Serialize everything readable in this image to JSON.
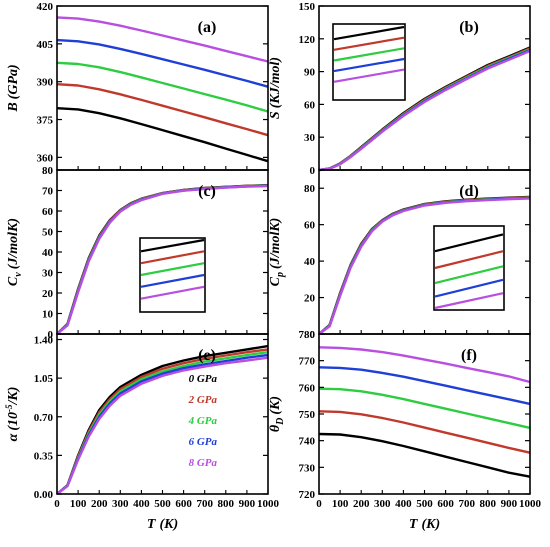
{
  "colors": {
    "0 GPa": "#000000",
    "2 GPa": "#c0392b",
    "4 GPa": "#2ecc40",
    "6 GPa": "#1f3fd6",
    "8 GPa": "#b84fe0"
  },
  "chart_data": [
    {
      "id": "a",
      "type": "line",
      "panel_label": "(a)",
      "ylabel_main": "B",
      "ylabel_unit": "(GPa)",
      "xlim": [
        0,
        1000
      ],
      "ylim": [
        355,
        420
      ],
      "yticks": [
        360,
        375,
        390,
        405,
        420
      ],
      "x": [
        0,
        100,
        200,
        300,
        400,
        500,
        600,
        700,
        800,
        900,
        1000
      ],
      "series": [
        {
          "name": "0 GPa",
          "values": [
            379.5,
            379.0,
            377.5,
            375.5,
            373.2,
            370.8,
            368.4,
            366.0,
            363.5,
            361.0,
            358.5
          ]
        },
        {
          "name": "2 GPa",
          "values": [
            389.0,
            388.5,
            387.0,
            385.0,
            382.8,
            380.5,
            378.2,
            375.9,
            373.5,
            371.2,
            368.8
          ]
        },
        {
          "name": "4 GPa",
          "values": [
            397.5,
            397.0,
            395.7,
            393.8,
            391.7,
            389.5,
            387.3,
            385.1,
            382.9,
            380.6,
            378.2
          ]
        },
        {
          "name": "6 GPa",
          "values": [
            406.5,
            406.0,
            404.8,
            403.0,
            401.0,
            398.9,
            396.8,
            394.7,
            392.5,
            390.3,
            388.0
          ]
        },
        {
          "name": "8 GPa",
          "values": [
            415.5,
            415.0,
            413.8,
            412.2,
            410.3,
            408.3,
            406.3,
            404.3,
            402.2,
            400.1,
            398.0
          ]
        }
      ]
    },
    {
      "id": "b",
      "type": "line",
      "panel_label": "(b)",
      "ylabel_main": "S",
      "ylabel_unit": "(KJ/mol)",
      "xlim": [
        0,
        1000
      ],
      "ylim": [
        0,
        150
      ],
      "yticks": [
        0,
        30,
        60,
        90,
        120,
        150
      ],
      "x": [
        0,
        50,
        100,
        150,
        200,
        300,
        400,
        500,
        600,
        700,
        800,
        900,
        1000
      ],
      "series": [
        {
          "name": "0 GPa",
          "values": [
            0,
            1.5,
            6,
            13,
            21,
            37,
            52,
            65,
            76,
            86,
            96,
            104,
            112
          ]
        },
        {
          "name": "2 GPa",
          "values": [
            0,
            1.4,
            5.8,
            12.7,
            20.6,
            36.5,
            51.3,
            64.3,
            75.3,
            85.3,
            95.2,
            103.2,
            111.2
          ]
        },
        {
          "name": "4 GPa",
          "values": [
            0,
            1.3,
            5.6,
            12.4,
            20.2,
            36.0,
            50.7,
            63.6,
            74.6,
            84.6,
            94.4,
            102.4,
            110.4
          ]
        },
        {
          "name": "6 GPa",
          "values": [
            0,
            1.2,
            5.4,
            12.1,
            19.8,
            35.5,
            50.1,
            62.9,
            73.9,
            83.9,
            93.6,
            101.6,
            109.6
          ]
        },
        {
          "name": "8 GPa",
          "values": [
            0,
            1.1,
            5.2,
            11.8,
            19.4,
            35.0,
            49.5,
            62.2,
            73.2,
            83.2,
            92.8,
            100.8,
            108.8
          ]
        }
      ]
    },
    {
      "id": "c",
      "type": "line",
      "panel_label": "(c)",
      "ylabel_main": "C",
      "ylabel_sub": "v",
      "ylabel_unit": "(J/molK)",
      "xlim": [
        0,
        1000
      ],
      "ylim": [
        0,
        80
      ],
      "yticks": [
        0,
        10,
        20,
        30,
        40,
        50,
        60,
        70,
        80
      ],
      "x": [
        0,
        50,
        100,
        150,
        200,
        250,
        300,
        350,
        400,
        500,
        600,
        700,
        800,
        900,
        1000
      ],
      "series": [
        {
          "name": "0 GPa",
          "values": [
            0,
            5,
            22,
            37,
            48,
            55.5,
            60.5,
            63.8,
            66,
            68.8,
            70.3,
            71.2,
            71.8,
            72.3,
            72.6
          ]
        },
        {
          "name": "2 GPa",
          "values": [
            0,
            4.8,
            21.6,
            36.6,
            47.6,
            55.2,
            60.3,
            63.6,
            65.9,
            68.7,
            70.2,
            71.1,
            71.7,
            72.2,
            72.5
          ]
        },
        {
          "name": "4 GPa",
          "values": [
            0,
            4.6,
            21.2,
            36.2,
            47.2,
            54.9,
            60.1,
            63.4,
            65.7,
            68.6,
            70.1,
            71.0,
            71.6,
            72.1,
            72.4
          ]
        },
        {
          "name": "6 GPa",
          "values": [
            0,
            4.4,
            20.8,
            35.8,
            46.8,
            54.6,
            59.9,
            63.2,
            65.5,
            68.5,
            70.0,
            70.9,
            71.5,
            72.0,
            72.3
          ]
        },
        {
          "name": "8 GPa",
          "values": [
            0,
            4.2,
            20.4,
            35.4,
            46.4,
            54.3,
            59.7,
            63.0,
            65.3,
            68.4,
            69.9,
            70.8,
            71.4,
            71.9,
            72.2
          ]
        }
      ]
    },
    {
      "id": "d",
      "type": "line",
      "panel_label": "(d)",
      "ylabel_main": "C",
      "ylabel_sub": "p",
      "ylabel_unit": "(J/molK)",
      "xlim": [
        0,
        1000
      ],
      "ylim": [
        0,
        90
      ],
      "yticks": [
        0,
        20,
        40,
        60,
        80
      ],
      "x": [
        0,
        50,
        100,
        150,
        200,
        250,
        300,
        350,
        400,
        500,
        600,
        700,
        800,
        900,
        1000
      ],
      "series": [
        {
          "name": "0 GPa",
          "values": [
            0,
            5,
            22.5,
            38,
            49.5,
            57.5,
            62.5,
            66,
            68.3,
            71.3,
            72.8,
            73.7,
            74.3,
            74.8,
            75.2
          ]
        },
        {
          "name": "2 GPa",
          "values": [
            0,
            4.8,
            22.1,
            37.6,
            49.1,
            57.2,
            62.3,
            65.8,
            68.1,
            71.1,
            72.6,
            73.5,
            74.1,
            74.6,
            75.0
          ]
        },
        {
          "name": "4 GPa",
          "values": [
            0,
            4.6,
            21.7,
            37.2,
            48.7,
            56.9,
            62.1,
            65.6,
            67.9,
            70.9,
            72.4,
            73.3,
            73.9,
            74.4,
            74.8
          ]
        },
        {
          "name": "6 GPa",
          "values": [
            0,
            4.4,
            21.3,
            36.8,
            48.3,
            56.6,
            61.9,
            65.4,
            67.7,
            70.7,
            72.2,
            73.1,
            73.7,
            74.2,
            74.6
          ]
        },
        {
          "name": "8 GPa",
          "values": [
            0,
            4.2,
            20.9,
            36.4,
            47.9,
            56.3,
            61.7,
            65.2,
            67.5,
            70.5,
            72.0,
            72.9,
            73.5,
            74.0,
            74.4
          ]
        }
      ]
    },
    {
      "id": "e",
      "type": "line",
      "panel_label": "(e)",
      "ylabel_main": "α",
      "ylabel_unit": "(10",
      "ylabel_exp": "-5",
      "ylabel_tail": "/K)",
      "xlabel_main": "T",
      "xlabel_unit": "(K)",
      "xlim": [
        0,
        1000
      ],
      "ylim": [
        0,
        1.45
      ],
      "yticks": [
        0.0,
        0.35,
        0.7,
        1.05,
        1.4
      ],
      "ytick_labels": [
        "0.00",
        "0.35",
        "0.70",
        "1.05",
        "1.40"
      ],
      "xticks": [
        0,
        100,
        200,
        300,
        400,
        500,
        600,
        700,
        800,
        900,
        1000
      ],
      "legend_placement": "center-right",
      "x": [
        0,
        50,
        100,
        150,
        200,
        250,
        300,
        400,
        500,
        600,
        700,
        800,
        900,
        1000
      ],
      "series": [
        {
          "name": "0 GPa",
          "values": [
            0,
            0.08,
            0.35,
            0.58,
            0.76,
            0.88,
            0.97,
            1.08,
            1.16,
            1.21,
            1.25,
            1.28,
            1.31,
            1.34
          ]
        },
        {
          "name": "2 GPa",
          "values": [
            0,
            0.078,
            0.34,
            0.565,
            0.74,
            0.86,
            0.95,
            1.06,
            1.135,
            1.185,
            1.225,
            1.255,
            1.285,
            1.31
          ]
        },
        {
          "name": "4 GPa",
          "values": [
            0,
            0.076,
            0.33,
            0.55,
            0.72,
            0.84,
            0.93,
            1.04,
            1.11,
            1.16,
            1.2,
            1.23,
            1.26,
            1.285
          ]
        },
        {
          "name": "6 GPa",
          "values": [
            0,
            0.074,
            0.32,
            0.535,
            0.7,
            0.82,
            0.91,
            1.02,
            1.09,
            1.14,
            1.175,
            1.205,
            1.235,
            1.26
          ]
        },
        {
          "name": "8 GPa",
          "values": [
            0,
            0.072,
            0.31,
            0.52,
            0.68,
            0.8,
            0.89,
            1.0,
            1.07,
            1.12,
            1.155,
            1.185,
            1.21,
            1.235
          ]
        }
      ]
    },
    {
      "id": "f",
      "type": "line",
      "panel_label": "(f)",
      "ylabel_main": "θ",
      "ylabel_sub": "D",
      "ylabel_unit": "(K)",
      "xlabel_main": "T",
      "xlabel_unit": "(K)",
      "xlim": [
        0,
        1000
      ],
      "ylim": [
        720,
        780
      ],
      "yticks": [
        720,
        730,
        740,
        750,
        760,
        770,
        780
      ],
      "xticks": [
        0,
        100,
        200,
        300,
        400,
        500,
        600,
        700,
        800,
        900,
        1000
      ],
      "x": [
        0,
        100,
        200,
        300,
        400,
        500,
        600,
        700,
        800,
        900,
        1000
      ],
      "series": [
        {
          "name": "0 GPa",
          "values": [
            742.5,
            742.3,
            741.3,
            739.8,
            738.0,
            736.0,
            734.0,
            732.0,
            730.0,
            728.0,
            726.5
          ]
        },
        {
          "name": "2 GPa",
          "values": [
            751.0,
            750.8,
            749.9,
            748.5,
            746.8,
            744.9,
            743.0,
            741.1,
            739.2,
            737.3,
            735.5
          ]
        },
        {
          "name": "4 GPa",
          "values": [
            759.5,
            759.3,
            758.5,
            757.2,
            755.6,
            753.8,
            752.0,
            750.2,
            748.4,
            746.6,
            744.8
          ]
        },
        {
          "name": "6 GPa",
          "values": [
            767.5,
            767.3,
            766.6,
            765.4,
            764.0,
            762.3,
            760.6,
            758.9,
            757.2,
            755.5,
            753.8
          ]
        },
        {
          "name": "8 GPa",
          "values": [
            775.0,
            774.8,
            774.2,
            773.2,
            771.9,
            770.4,
            768.9,
            767.3,
            765.7,
            764.1,
            762.0
          ]
        }
      ]
    }
  ],
  "insets": [
    {
      "panel": "b",
      "values": [
        0.88,
        0.74,
        0.6,
        0.46,
        0.32
      ]
    },
    {
      "panel": "c",
      "values": [
        0.9,
        0.74,
        0.58,
        0.42,
        0.26
      ]
    },
    {
      "panel": "d",
      "values": [
        0.8,
        0.6,
        0.42,
        0.26,
        0.1
      ]
    }
  ]
}
